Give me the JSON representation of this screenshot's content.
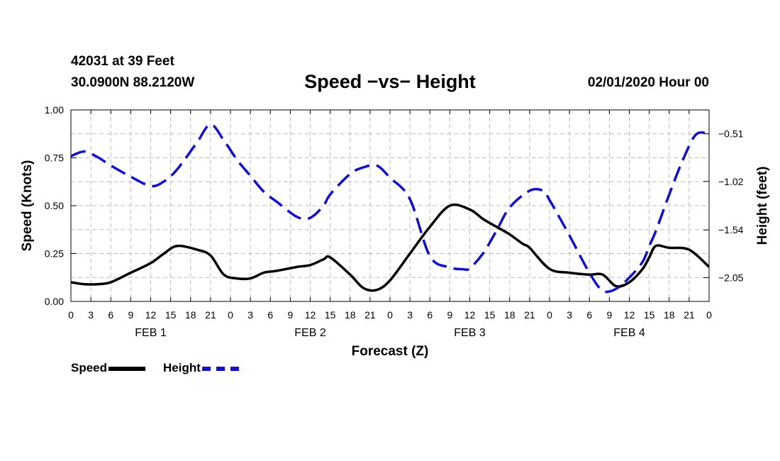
{
  "header": {
    "station": "42031 at 39 Feet",
    "coords": "30.0900N 88.2120W",
    "title": "Speed −vs− Height",
    "date": "02/01/2020 Hour 00"
  },
  "chart_data": {
    "type": "line",
    "title": "Speed −vs− Height",
    "xlabel": "Forecast (Z)",
    "ylabel": "Speed (Knots)",
    "y2label": "Height (feet)",
    "ylim": [
      0,
      1
    ],
    "y2lim": [
      -2.305,
      -0.255
    ],
    "grid": true,
    "x_ticks": [
      0,
      3,
      6,
      9,
      12,
      15,
      18,
      21,
      24,
      27,
      30,
      33,
      36,
      39,
      42,
      45,
      48,
      51,
      54,
      57,
      60,
      63,
      66,
      69,
      72,
      75,
      78,
      81,
      84,
      87,
      90,
      93,
      96
    ],
    "x_tick_labels": [
      "0",
      "3",
      "6",
      "9",
      "12",
      "15",
      "18",
      "21",
      "0",
      "3",
      "6",
      "9",
      "12",
      "15",
      "18",
      "21",
      "0",
      "3",
      "6",
      "9",
      "12",
      "15",
      "18",
      "21",
      "0",
      "3",
      "6",
      "9",
      "12",
      "15",
      "18",
      "21",
      "0"
    ],
    "day_labels": [
      {
        "label": "FEB 1",
        "x": 12
      },
      {
        "label": "FEB 2",
        "x": 36
      },
      {
        "label": "FEB 3",
        "x": 60
      },
      {
        "label": "FEB 4",
        "x": 84
      }
    ],
    "y_ticks": [
      0,
      0.25,
      0.5,
      0.75,
      1.0
    ],
    "y_tick_labels": [
      "0.00",
      "0.25",
      "0.50",
      "0.75",
      "1.00"
    ],
    "y2_ticks": [
      -0.51,
      -1.02,
      -1.54,
      -2.05
    ],
    "y2_tick_labels": [
      "−0.51",
      "−1.02",
      "−1.54",
      "−2.05"
    ],
    "series": [
      {
        "name": "Speed",
        "axis": "left",
        "color": "#000000",
        "dash": "solid",
        "x": [
          0,
          2,
          4,
          6,
          9,
          12,
          14,
          16,
          19,
          21,
          23,
          25,
          27,
          29,
          31,
          34,
          36,
          38,
          39,
          42,
          44,
          46,
          48,
          51,
          54,
          57,
          60,
          62,
          64,
          66,
          68,
          69,
          72,
          75,
          78,
          80,
          82,
          84,
          86,
          87,
          88,
          90,
          93,
          96
        ],
        "values": [
          0.1,
          0.09,
          0.09,
          0.1,
          0.15,
          0.2,
          0.25,
          0.29,
          0.27,
          0.24,
          0.14,
          0.12,
          0.12,
          0.15,
          0.16,
          0.18,
          0.19,
          0.22,
          0.23,
          0.14,
          0.07,
          0.06,
          0.11,
          0.25,
          0.39,
          0.5,
          0.48,
          0.43,
          0.39,
          0.35,
          0.3,
          0.28,
          0.17,
          0.15,
          0.14,
          0.14,
          0.08,
          0.1,
          0.17,
          0.23,
          0.29,
          0.28,
          0.27,
          0.18
        ]
      },
      {
        "name": "Height",
        "axis": "right",
        "color": "#1010cc",
        "dash": "dashed",
        "x": [
          0,
          2,
          4,
          6,
          9,
          12,
          14,
          16,
          19,
          21,
          23,
          25,
          27,
          29,
          31,
          34,
          36,
          38,
          39,
          42,
          44,
          46,
          48,
          51,
          54,
          57,
          59,
          60,
          62,
          64,
          66,
          69,
          71,
          72,
          75,
          78,
          80,
          82,
          84,
          86,
          87,
          88,
          90,
          92,
          94,
          96
        ],
        "values": [
          -0.75,
          -0.7,
          -0.76,
          -0.85,
          -0.97,
          -1.07,
          -1.02,
          -0.89,
          -0.6,
          -0.41,
          -0.58,
          -0.79,
          -0.96,
          -1.13,
          -1.24,
          -1.4,
          -1.41,
          -1.28,
          -1.16,
          -0.94,
          -0.87,
          -0.85,
          -0.98,
          -1.21,
          -1.82,
          -1.94,
          -1.96,
          -1.95,
          -1.79,
          -1.55,
          -1.3,
          -1.12,
          -1.12,
          -1.22,
          -1.6,
          -2.0,
          -2.19,
          -2.17,
          -2.05,
          -1.88,
          -1.71,
          -1.55,
          -1.16,
          -0.8,
          -0.52,
          -0.51
        ]
      }
    ]
  },
  "legend": {
    "speed_label": "Speed",
    "height_label": "Height",
    "speed_color": "#000000",
    "height_color": "#1010cc"
  }
}
